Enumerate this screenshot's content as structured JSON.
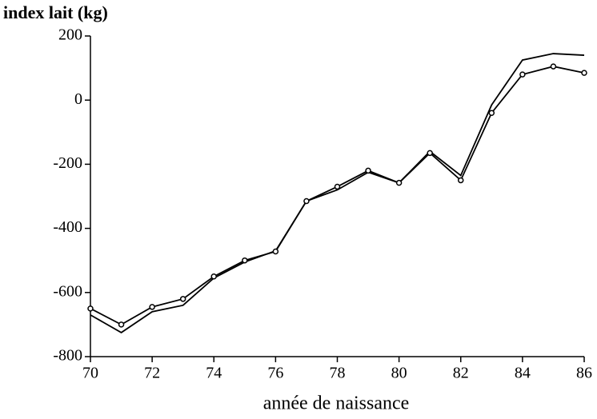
{
  "chart_data": {
    "type": "line",
    "title": "index lait (kg)",
    "x_label": "année de naissance",
    "x": [
      70,
      71,
      72,
      73,
      74,
      75,
      76,
      77,
      78,
      79,
      80,
      81,
      82,
      83,
      84,
      85,
      86
    ],
    "series": [
      {
        "color": "#000000",
        "markers": false,
        "values": [
          -670,
          -725,
          -660,
          -640,
          -555,
          -505,
          -470,
          -315,
          -280,
          -225,
          -258,
          -160,
          -235,
          -15,
          125,
          145,
          140
        ]
      },
      {
        "color": "#000000",
        "markers": true,
        "values": [
          -650,
          -700,
          -645,
          -620,
          -550,
          -500,
          -472,
          -315,
          -270,
          -220,
          -258,
          -165,
          -250,
          -40,
          80,
          105,
          85
        ]
      }
    ],
    "xlim": [
      70,
      86
    ],
    "xticks": [
      70,
      72,
      74,
      76,
      78,
      80,
      82,
      84,
      86
    ],
    "ylim": [
      -800,
      200
    ],
    "yticks": [
      -800,
      -600,
      -400,
      -200,
      0,
      200
    ]
  }
}
